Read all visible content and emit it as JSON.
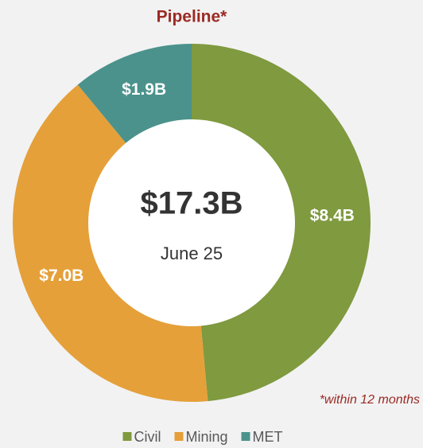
{
  "chart_data": {
    "type": "donut",
    "title": "Pipeline*",
    "categories": [
      "Civil",
      "Mining",
      "MET"
    ],
    "values": [
      8.4,
      7.0,
      1.9
    ],
    "value_labels": [
      "$8.4B",
      "$7.0B",
      "$1.9B"
    ],
    "colors": [
      "#7f9a3f",
      "#e5a03a",
      "#4b928c"
    ],
    "center_value": "$17.3B",
    "center_label": "June 25",
    "footnote": "*within 12 months",
    "legend": "bottom"
  }
}
